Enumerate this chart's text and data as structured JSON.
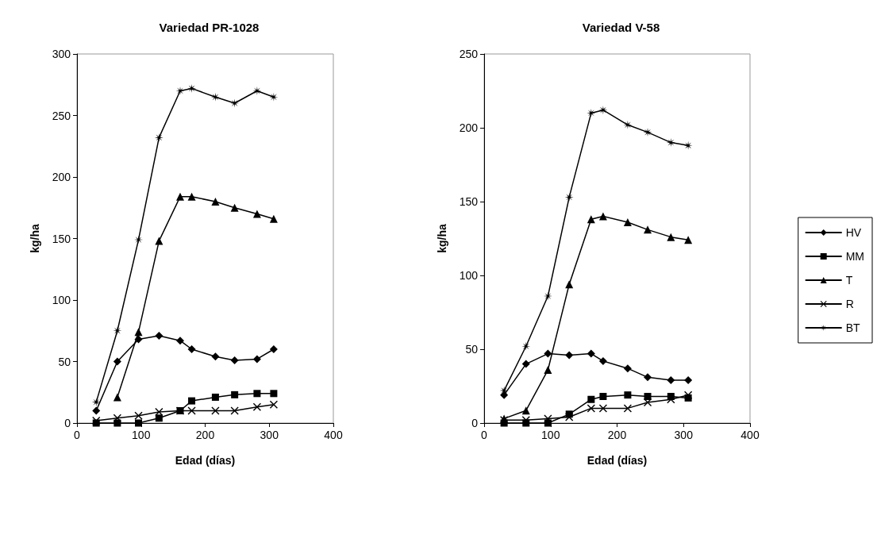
{
  "chart_data": [
    {
      "type": "line",
      "title": "Variedad PR-1028",
      "xlabel": "Edad (días)",
      "ylabel": "kg/ha",
      "xlim": [
        0,
        400
      ],
      "xticks": [
        0,
        100,
        200,
        300,
        400
      ],
      "ylim": [
        0,
        300
      ],
      "yticks": [
        0,
        50,
        100,
        150,
        200,
        250,
        300
      ],
      "grid": false,
      "legend": false,
      "x": [
        30,
        63,
        96,
        128,
        161,
        179,
        216,
        246,
        281,
        307
      ],
      "series": [
        {
          "color": "#000000",
          "marker": "diamond",
          "values": [
            10,
            50,
            68,
            71,
            67,
            60,
            54,
            51,
            52,
            60
          ]
        },
        {
          "color": "#000000",
          "marker": "square",
          "values": [
            0,
            0,
            0,
            4,
            10,
            18,
            21,
            23,
            24,
            24
          ]
        },
        {
          "color": "#000000",
          "marker": "triangle",
          "values": [
            null,
            21,
            74,
            148,
            184,
            184,
            180,
            175,
            170,
            166
          ]
        },
        {
          "color": "#000000",
          "marker": "cross",
          "values": [
            2,
            4,
            6,
            9,
            10,
            10,
            10,
            10,
            13,
            15
          ]
        },
        {
          "color": "#000000",
          "marker": "star",
          "values": [
            17,
            75,
            149,
            232,
            270,
            272,
            265,
            260,
            270,
            265
          ]
        }
      ]
    },
    {
      "type": "line",
      "title": "Variedad V-58",
      "xlabel": "Edad (días)",
      "ylabel": "kg/ha",
      "xlim": [
        0,
        400
      ],
      "xticks": [
        0,
        100,
        200,
        300,
        400
      ],
      "ylim": [
        0,
        250
      ],
      "yticks": [
        0,
        50,
        100,
        150,
        200,
        250
      ],
      "grid": false,
      "legend": "right",
      "x": [
        30,
        63,
        96,
        128,
        161,
        179,
        216,
        246,
        281,
        307
      ],
      "series": [
        {
          "name": "HV",
          "color": "#000000",
          "marker": "diamond",
          "values": [
            19,
            40,
            47,
            46,
            47,
            42,
            37,
            31,
            29,
            29
          ]
        },
        {
          "name": "MM",
          "color": "#000000",
          "marker": "square",
          "values": [
            0,
            0,
            0,
            6,
            16,
            18,
            19,
            18,
            18,
            17
          ]
        },
        {
          "name": "T",
          "color": "#000000",
          "marker": "triangle",
          "values": [
            3,
            8.5,
            36,
            94,
            138,
            140,
            136,
            131,
            126,
            124
          ]
        },
        {
          "name": "R",
          "color": "#000000",
          "marker": "cross",
          "values": [
            2,
            2,
            3,
            4,
            10,
            10,
            10,
            14,
            16,
            19
          ]
        },
        {
          "name": "BT",
          "color": "#000000",
          "marker": "star",
          "values": [
            22,
            52,
            86,
            153,
            210,
            212,
            202,
            197,
            190,
            188
          ]
        }
      ]
    }
  ]
}
